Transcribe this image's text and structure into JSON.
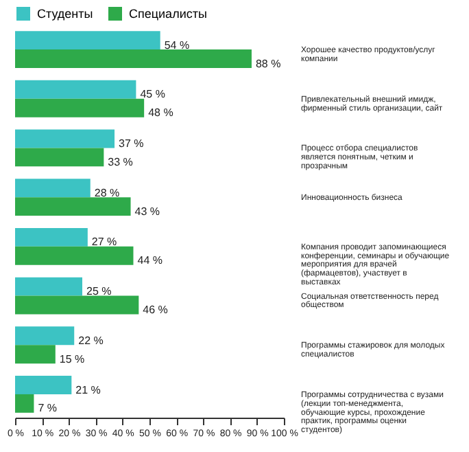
{
  "chart_data": {
    "type": "bar",
    "orientation": "horizontal",
    "legend": "top left",
    "categories": [
      "Хорошее качество продуктов/услуг компании",
      "Привлекательный внешний имидж, фирменный стиль организации, сайт",
      "Процесс отбора специалистов является понятным, четким и прозрачным",
      "Инновационность бизнеса",
      "Компания проводит запоминающиеся конференции, семинары и обучающие мероприятия для врачей (фармацевтов), участвует в выставках",
      "Социальная ответственность перед обществом",
      "Программы стажировок для молодых специалистов",
      "Программы сотрудничества с вузами (лекции топ-менеджмента, обучающие курсы, прохождение практик, программы оценки студентов)"
    ],
    "series": [
      {
        "name": "Студенты",
        "color": "#3cc3c3",
        "values": [
          54,
          45,
          37,
          28,
          27,
          25,
          22,
          21
        ],
        "value_labels": [
          "54 %",
          "45 %",
          "37 %",
          "28 %",
          "27 %",
          "25 %",
          "22 %",
          "21 %"
        ]
      },
      {
        "name": "Специалисты",
        "color": "#2eaa4a",
        "values": [
          88,
          48,
          33,
          43,
          44,
          46,
          15,
          7
        ],
        "value_labels": [
          "88 %",
          "48 %",
          "33 %",
          "43 %",
          "44 %",
          "46 %",
          "15 %",
          "7 %"
        ]
      }
    ],
    "xlim": [
      0,
      100
    ],
    "xticks": [
      {
        "value": 0,
        "label": "0 %"
      },
      {
        "value": 10,
        "label": "10 %"
      },
      {
        "value": 20,
        "label": "20 %"
      },
      {
        "value": 30,
        "label": "30 %"
      },
      {
        "value": 40,
        "label": "40 %"
      },
      {
        "value": 50,
        "label": "50 %"
      },
      {
        "value": 60,
        "label": "60 %"
      },
      {
        "value": 70,
        "label": "70 %"
      },
      {
        "value": 80,
        "label": "80 %"
      },
      {
        "value": 90,
        "label": "90 %"
      },
      {
        "value": 100,
        "label": "100 %"
      }
    ]
  }
}
